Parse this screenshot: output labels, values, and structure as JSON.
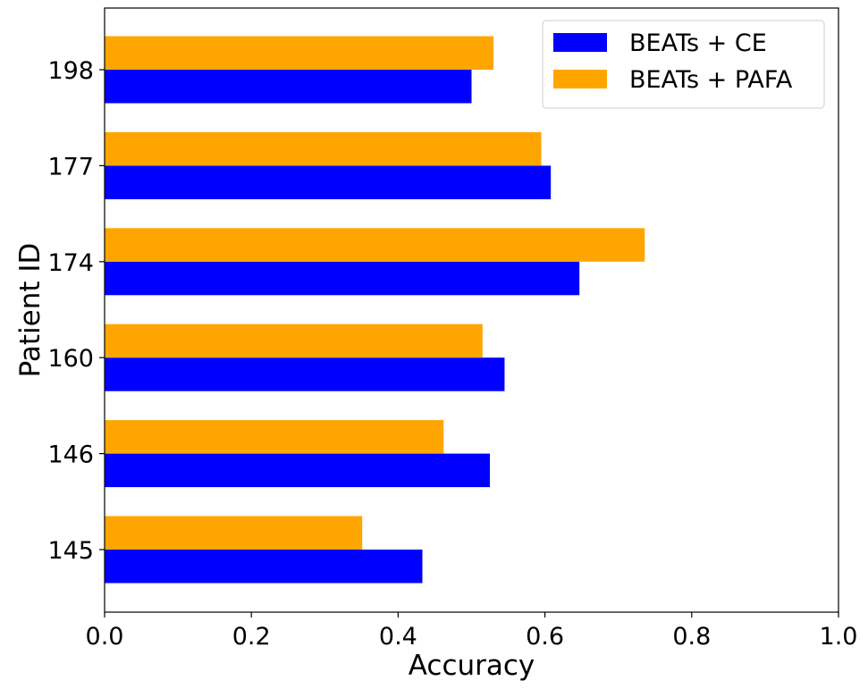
{
  "chart_data": {
    "type": "bar",
    "orientation": "horizontal",
    "categories": [
      "145",
      "146",
      "160",
      "174",
      "177",
      "198"
    ],
    "series": [
      {
        "name": "BEATs + CE",
        "color": "#0000ff",
        "values": [
          0.433,
          0.525,
          0.545,
          0.647,
          0.608,
          0.5
        ]
      },
      {
        "name": "BEATs + PAFA",
        "color": "#ffa500",
        "values": [
          0.351,
          0.462,
          0.515,
          0.736,
          0.595,
          0.53
        ]
      }
    ],
    "xlabel": "Accuracy",
    "ylabel": "Patient ID",
    "xlim": [
      0.0,
      1.0
    ],
    "xticks": [
      "0.0",
      "0.2",
      "0.4",
      "0.6",
      "0.8",
      "1.0"
    ],
    "grid": false,
    "legend_position": "top-right"
  }
}
